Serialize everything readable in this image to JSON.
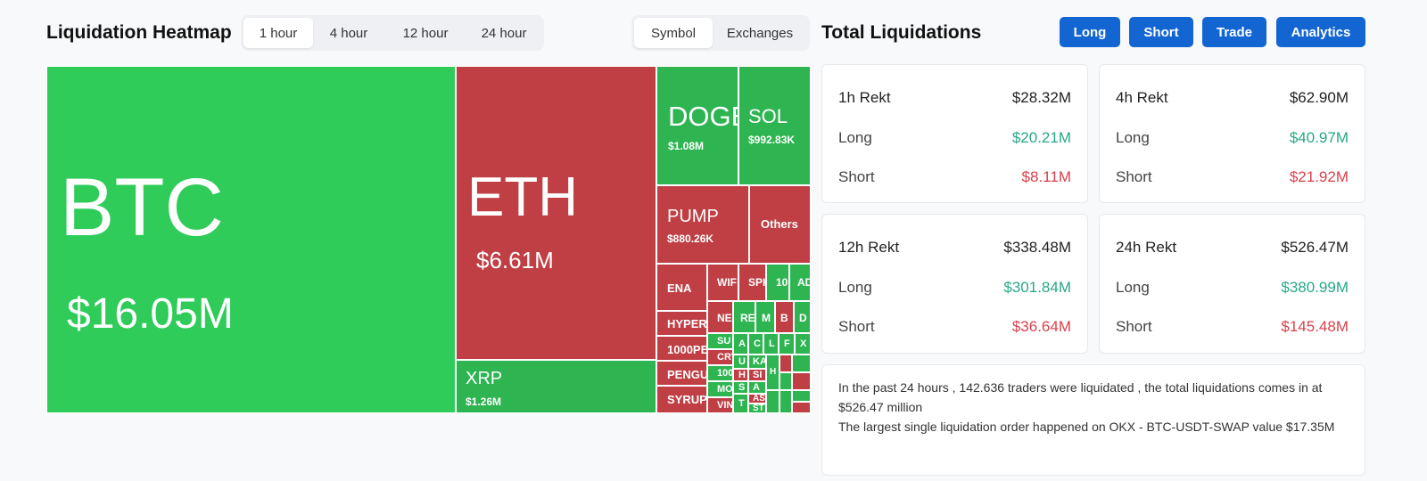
{
  "heatmap": {
    "title": "Liquidation Heatmap",
    "timeframes": [
      "1 hour",
      "4 hour",
      "12 hour",
      "24 hour"
    ],
    "active_timeframe": "1 hour",
    "groupings": [
      "Symbol",
      "Exchanges"
    ],
    "active_grouping": "Symbol",
    "tiles": [
      {
        "symbol": "BTC",
        "value": "$16.05M",
        "side": "long"
      },
      {
        "symbol": "ETH",
        "value": "$6.61M",
        "side": "short"
      },
      {
        "symbol": "XRP",
        "value": "$1.26M",
        "side": "long"
      },
      {
        "symbol": "DOGE",
        "value": "$1.08M",
        "side": "long"
      },
      {
        "symbol": "SOL",
        "value": "$992.83K",
        "side": "long"
      },
      {
        "symbol": "PUMP",
        "value": "$880.26K",
        "side": "short"
      },
      {
        "symbol": "Others",
        "value": "",
        "side": "short"
      },
      {
        "symbol": "ENA",
        "value": "",
        "side": "short"
      },
      {
        "symbol": "HYPER",
        "value": "",
        "side": "short"
      },
      {
        "symbol": "1000PE",
        "value": "",
        "side": "short"
      },
      {
        "symbol": "PENGU",
        "value": "",
        "side": "short"
      },
      {
        "symbol": "SYRUP",
        "value": "",
        "side": "short"
      },
      {
        "symbol": "WIF",
        "value": "",
        "side": "short"
      },
      {
        "symbol": "SPK",
        "value": "",
        "side": "short"
      },
      {
        "symbol": "10",
        "value": "",
        "side": "long"
      },
      {
        "symbol": "AD",
        "value": "",
        "side": "long"
      },
      {
        "symbol": "NE",
        "value": "",
        "side": "short"
      },
      {
        "symbol": "RE",
        "value": "",
        "side": "long"
      },
      {
        "symbol": "M",
        "value": "",
        "side": "long"
      },
      {
        "symbol": "B",
        "value": "",
        "side": "short"
      },
      {
        "symbol": "D",
        "value": "",
        "side": "long"
      },
      {
        "symbol": "SU",
        "value": "",
        "side": "long"
      },
      {
        "symbol": "CRV",
        "value": "",
        "side": "short"
      },
      {
        "symbol": "100",
        "value": "",
        "side": "long"
      },
      {
        "symbol": "MO",
        "value": "",
        "side": "long"
      },
      {
        "symbol": "VIN",
        "value": "",
        "side": "short"
      },
      {
        "symbol": "A",
        "value": "",
        "side": "long"
      },
      {
        "symbol": "C",
        "value": "",
        "side": "long"
      },
      {
        "symbol": "L",
        "value": "",
        "side": "long"
      },
      {
        "symbol": "F",
        "value": "",
        "side": "long"
      },
      {
        "symbol": "X",
        "value": "",
        "side": "long"
      },
      {
        "symbol": "U",
        "value": "",
        "side": "long"
      },
      {
        "symbol": "KA",
        "value": "",
        "side": "long"
      },
      {
        "symbol": "H",
        "value": "",
        "side": "short"
      },
      {
        "symbol": "SI",
        "value": "",
        "side": "short"
      },
      {
        "symbol": "S",
        "value": "",
        "side": "long"
      },
      {
        "symbol": "A",
        "value": "",
        "side": "long"
      },
      {
        "symbol": "T",
        "value": "",
        "side": "long"
      },
      {
        "symbol": "AS",
        "value": "",
        "side": "short"
      },
      {
        "symbol": "ST",
        "value": "",
        "side": "long"
      },
      {
        "symbol": "H",
        "value": "",
        "side": "long"
      }
    ]
  },
  "totals": {
    "title": "Total Liquidations",
    "buttons": [
      "Long",
      "Short",
      "Trade",
      "Analytics"
    ],
    "labels": {
      "long": "Long",
      "short": "Short"
    },
    "cards": [
      {
        "label": "1h Rekt",
        "total": "$28.32M",
        "long": "$20.21M",
        "short": "$8.11M"
      },
      {
        "label": "4h Rekt",
        "total": "$62.90M",
        "long": "$40.97M",
        "short": "$21.92M"
      },
      {
        "label": "12h Rekt",
        "total": "$338.48M",
        "long": "$301.84M",
        "short": "$36.64M"
      },
      {
        "label": "24h Rekt",
        "total": "$526.47M",
        "long": "$380.99M",
        "short": "$145.48M"
      }
    ],
    "summary_line1": "In the past 24 hours , 142.636 traders were liquidated , the total liquidations comes in at $526.47 million",
    "summary_line2": "The largest single liquidation order happened on OKX - BTC-USDT-SWAP value $17.35M"
  },
  "colors": {
    "long_tile": "#2eb551",
    "short_tile": "#bf3f45",
    "accent": "#1366d1",
    "long_text": "#27a888",
    "short_text": "#d9404b"
  }
}
